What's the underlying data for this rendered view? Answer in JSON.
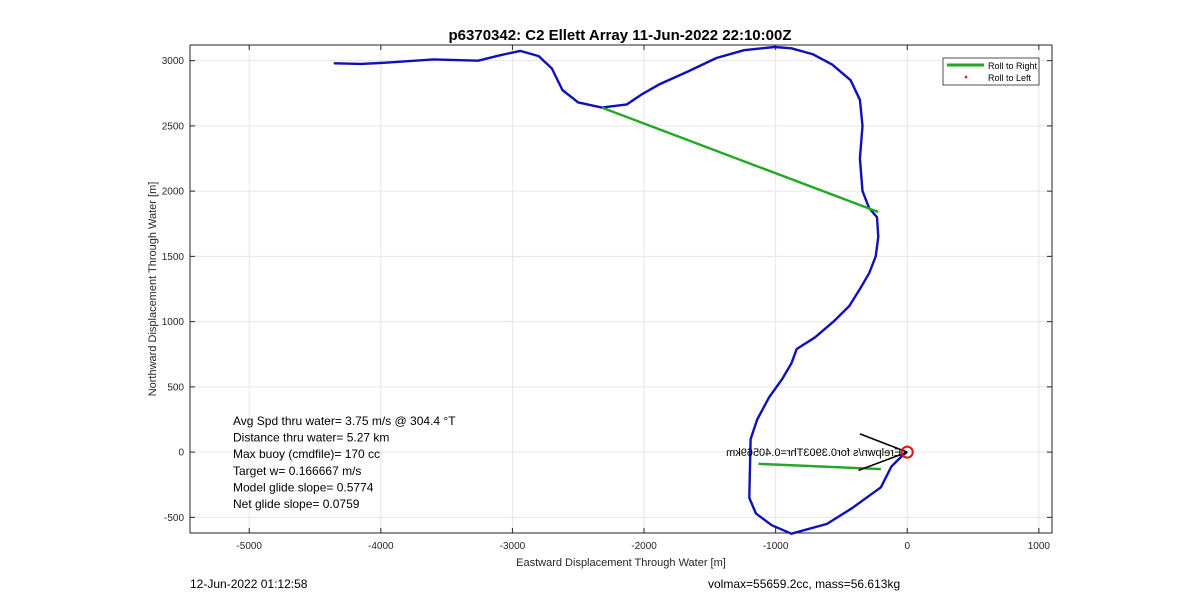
{
  "chart_data": {
    "type": "line",
    "title": "p6370342: C2 Ellett Array 11-Jun-2022 22:10:00Z",
    "xlabel": "Eastward Displacement Through Water [m]",
    "ylabel": "Northward Displacement Through Water [m]",
    "xlim": [
      -5450,
      1100
    ],
    "ylim": [
      -620,
      3120
    ],
    "xticks": [
      -5000,
      -4000,
      -3000,
      -2000,
      -1000,
      0,
      1000
    ],
    "yticks": [
      -500,
      0,
      500,
      1000,
      1500,
      2000,
      2500,
      3000
    ],
    "grid": true,
    "legend_position": "top-right",
    "legend": [
      "Roll to Right",
      "Roll to Left"
    ],
    "colors": {
      "track": "#1010b8",
      "roll_right": "#22a822",
      "roll_left": "#e01010",
      "marker": "#e01010",
      "arrow": "#000000",
      "grid": "#e6e6e6"
    },
    "series": [
      {
        "name": "track",
        "x": [
          -4350,
          -4150,
          -3950,
          -3600,
          -3260,
          -3100,
          -2940,
          -2800,
          -2700,
          -2620,
          -2500,
          -2320,
          -2130,
          -2020,
          -1880,
          -1660,
          -1450,
          -1240,
          -1010,
          -880,
          -720,
          -570,
          -430,
          -360,
          -340,
          -360,
          -340,
          -290,
          -230,
          -220,
          -240,
          -290,
          -360,
          -440,
          -560,
          -700,
          -840,
          -880,
          -950,
          -1050,
          -1140,
          -1190,
          -1200,
          -1150,
          -1030,
          -880,
          -610,
          -420,
          -200,
          -120,
          -40,
          -10
        ],
        "y": [
          2980,
          2975,
          2985,
          3010,
          3000,
          3040,
          3075,
          3035,
          2940,
          2775,
          2680,
          2640,
          2665,
          2740,
          2820,
          2920,
          3020,
          3080,
          3105,
          3095,
          3050,
          2970,
          2850,
          2700,
          2500,
          2250,
          2000,
          1870,
          1800,
          1650,
          1500,
          1370,
          1250,
          1120,
          1000,
          880,
          790,
          680,
          560,
          420,
          250,
          100,
          -350,
          -470,
          -560,
          -625,
          -550,
          -430,
          -270,
          -110,
          -30,
          -5
        ]
      },
      {
        "name": "Roll to Right",
        "segments": [
          {
            "x": [
              -2320,
              -220
            ],
            "y": [
              2640,
              1840
            ]
          },
          {
            "x": [
              -1130,
              -200
            ],
            "y": [
              -90,
              -130
            ]
          }
        ]
      }
    ],
    "arrows": [
      {
        "x": [
          0,
          -360
        ],
        "y": [
          0,
          140
        ]
      },
      {
        "x": [
          0,
          -370
        ],
        "y": [
          0,
          -140
        ]
      }
    ],
    "end_marker": {
      "x": 0,
      "y": 0
    },
    "stats": [
      "Avg Spd thru water=  3.75 m/s @ 304.4 °T",
      "Distance thru water=  5.27 km",
      "Max buoy (cmdfile)= 170 cc",
      "Target w= 0.166667 m/s",
      "Model glide slope= 0.5774",
      "Net glide slope= 0.0759"
    ],
    "mirrored_label": "Erelpwn/s for0.3903Thr=0.40569km",
    "footer_left": "12-Jun-2022 01:12:58",
    "footer_right": "volmax=55659.2cc, mass=56.613kg"
  }
}
